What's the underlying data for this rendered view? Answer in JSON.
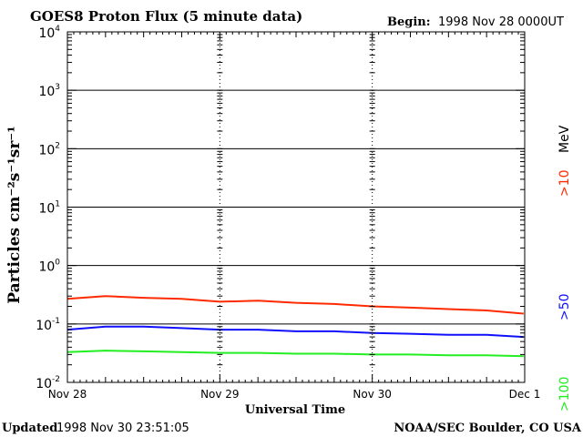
{
  "header": {
    "title": "GOES8 Proton Flux (5 minute data)",
    "begin_label": "Begin:",
    "begin_value": "1998 Nov 28 0000UT"
  },
  "footer": {
    "updated_label": "Updated",
    "updated_value": "1998 Nov 30 23:51:05",
    "credit": "NOAA/SEC Boulder, CO USA"
  },
  "chart_data": {
    "type": "line",
    "title": "GOES8 Proton Flux (5 minute data)",
    "xlabel": "Universal Time",
    "ylabel": "Particles cm⁻²s⁻¹sr⁻¹",
    "yscale": "log",
    "ylim": [
      0.01,
      10000
    ],
    "y_ticks": [
      {
        "base": "10",
        "exp": "-2"
      },
      {
        "base": "10",
        "exp": "-1"
      },
      {
        "base": "10",
        "exp": "0"
      },
      {
        "base": "10",
        "exp": "1"
      },
      {
        "base": "10",
        "exp": "2"
      },
      {
        "base": "10",
        "exp": "3"
      },
      {
        "base": "10",
        "exp": "4"
      }
    ],
    "x_ticks": [
      "Nov 28",
      "Nov 29",
      "Nov 30",
      "Dec 1"
    ],
    "xlim": [
      "1998-11-28T00:00",
      "1998-12-01T00:00"
    ],
    "grid": true,
    "legend_placement": "right",
    "legend_unit": "MeV",
    "series": [
      {
        "name": ">10",
        "color": "#ff2a00",
        "x": [
          "1998-11-28T00:00",
          "1998-11-28T06:00",
          "1998-11-28T12:00",
          "1998-11-28T18:00",
          "1998-11-29T00:00",
          "1998-11-29T06:00",
          "1998-11-29T12:00",
          "1998-11-29T18:00",
          "1998-11-30T00:00",
          "1998-11-30T06:00",
          "1998-11-30T12:00",
          "1998-11-30T18:00",
          "1998-11-30T23:50"
        ],
        "y": [
          0.27,
          0.3,
          0.28,
          0.27,
          0.24,
          0.25,
          0.23,
          0.22,
          0.2,
          0.19,
          0.18,
          0.17,
          0.15
        ]
      },
      {
        "name": ">50",
        "color": "#1010ff",
        "x": [
          "1998-11-28T00:00",
          "1998-11-28T06:00",
          "1998-11-28T12:00",
          "1998-11-28T18:00",
          "1998-11-29T00:00",
          "1998-11-29T06:00",
          "1998-11-29T12:00",
          "1998-11-29T18:00",
          "1998-11-30T00:00",
          "1998-11-30T06:00",
          "1998-11-30T12:00",
          "1998-11-30T18:00",
          "1998-11-30T23:50"
        ],
        "y": [
          0.08,
          0.09,
          0.09,
          0.085,
          0.08,
          0.08,
          0.075,
          0.075,
          0.07,
          0.068,
          0.065,
          0.065,
          0.06
        ]
      },
      {
        "name": ">100",
        "color": "#22ee22",
        "x": [
          "1998-11-28T00:00",
          "1998-11-28T06:00",
          "1998-11-28T12:00",
          "1998-11-28T18:00",
          "1998-11-29T00:00",
          "1998-11-29T06:00",
          "1998-11-29T12:00",
          "1998-11-29T18:00",
          "1998-11-30T00:00",
          "1998-11-30T06:00",
          "1998-11-30T12:00",
          "1998-11-30T18:00",
          "1998-11-30T23:50"
        ],
        "y": [
          0.033,
          0.035,
          0.034,
          0.033,
          0.032,
          0.032,
          0.031,
          0.031,
          0.03,
          0.03,
          0.029,
          0.029,
          0.028
        ]
      }
    ]
  }
}
